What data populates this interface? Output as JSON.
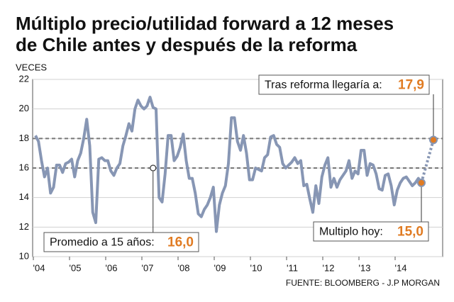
{
  "chart_data": {
    "type": "line",
    "title": [
      "Múltiplo precio/utilidad forward a 12 meses",
      "de Chile antes y después de la reforma"
    ],
    "y_label": "VECES",
    "source": "FUENTE: BLOOMBERG - J.P MORGAN",
    "categories": [
      "'04",
      null,
      null,
      null,
      null,
      null,
      null,
      null,
      null,
      null,
      null,
      null,
      "'05",
      null,
      null,
      null,
      null,
      null,
      null,
      null,
      null,
      null,
      null,
      null,
      "'06",
      null,
      null,
      null,
      null,
      null,
      null,
      null,
      null,
      null,
      null,
      null,
      "'07",
      null,
      null,
      null,
      null,
      null,
      null,
      null,
      null,
      null,
      null,
      null,
      "'08",
      null,
      null,
      null,
      null,
      null,
      null,
      null,
      null,
      null,
      null,
      null,
      "'09",
      null,
      null,
      null,
      null,
      null,
      null,
      null,
      null,
      null,
      null,
      null,
      "'10",
      null,
      null,
      null,
      null,
      null,
      null,
      null,
      null,
      null,
      null,
      null,
      "'11",
      null,
      null,
      null,
      null,
      null,
      null,
      null,
      null,
      null,
      null,
      null,
      "'12",
      null,
      null,
      null,
      null,
      null,
      null,
      null,
      null,
      null,
      null,
      null,
      "'13",
      null,
      null,
      null,
      null,
      null,
      null,
      null,
      null,
      null,
      null,
      null,
      "'14",
      null,
      null,
      null,
      null,
      null,
      null,
      null,
      null
    ],
    "series": [
      {
        "color": "#8796b4",
        "values": [
          18.2,
          17.8,
          16.5,
          15.4,
          16.0,
          14.3,
          14.7,
          16.2,
          16.2,
          15.7,
          16.3,
          16.4,
          16.6,
          15.4,
          16.5,
          17.0,
          18.0,
          19.3,
          17.5,
          13.0,
          12.3,
          16.6,
          16.7,
          16.5,
          16.5,
          15.8,
          15.5,
          16.0,
          16.3,
          17.5,
          18.2,
          19.0,
          18.5,
          20.0,
          20.6,
          20.2,
          20.0,
          20.2,
          20.8,
          20.1,
          20.0,
          14.0,
          13.7,
          15.6,
          18.2,
          18.2,
          16.5,
          16.8,
          17.4,
          18.3,
          16.5,
          15.3,
          15.3,
          14.3,
          12.9,
          12.7,
          13.2,
          13.5,
          14.0,
          14.7,
          11.7,
          13.5,
          14.3,
          14.8,
          16.3,
          19.4,
          19.4,
          17.8,
          17.2,
          18.2,
          17.0,
          15.2,
          15.2,
          16.0,
          15.9,
          15.8,
          16.7,
          16.9,
          18.1,
          18.2,
          17.6,
          17.4,
          16.3,
          16.0,
          16.2,
          16.4,
          16.7,
          16.3,
          16.5,
          14.8,
          14.9,
          13.9,
          13.0,
          14.8,
          13.6,
          15.4,
          16.2,
          16.7,
          14.7,
          15.3,
          14.7,
          15.2,
          15.5,
          15.8,
          16.5,
          15.3,
          15.8,
          15.6,
          17.2,
          17.2,
          15.5,
          16.3,
          16.2,
          15.6,
          14.6,
          14.5,
          15.5,
          15.6,
          14.8,
          13.5,
          14.5,
          15.0,
          15.3,
          15.4,
          15.1,
          14.8,
          15.0,
          15.3,
          15.0
        ]
      }
    ],
    "ylim": [
      10,
      22
    ],
    "yticks": [
      10,
      12,
      14,
      16,
      18,
      20,
      22
    ],
    "grid": true,
    "reference_lines": [
      18,
      16
    ],
    "annotations": [
      {
        "text": "Promedio a 15 años:",
        "value": 16.0,
        "value_label": "16,0"
      },
      {
        "text": "Multiplo hoy:",
        "value": 15.0,
        "value_label": "15,0"
      },
      {
        "text": "Tras reforma llegaría a:",
        "value": 17.9,
        "value_label": "17,9"
      }
    ],
    "accent_color": "#e07b22"
  }
}
